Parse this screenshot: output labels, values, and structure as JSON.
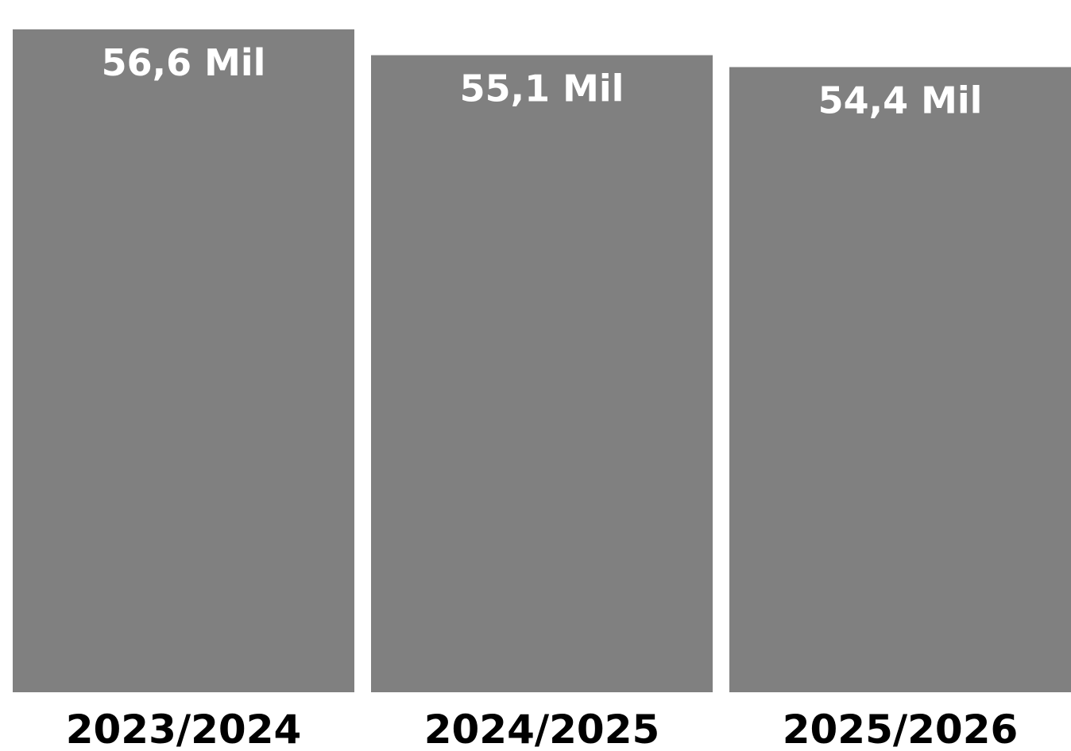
{
  "chart_data": {
    "type": "bar",
    "categories": [
      "2023/2024",
      "2024/2025",
      "2025/2026"
    ],
    "values": [
      56.6,
      55.1,
      54.4
    ],
    "data_labels": [
      "56,6 Mil",
      "55,1 Mil",
      "54,4 Mil"
    ],
    "title": "",
    "xlabel": "",
    "ylabel": "",
    "ylim": [
      0,
      56.6
    ],
    "grid": false,
    "bar_color": "#808080",
    "label_color": "#ffffff",
    "category_label_color": "#000000"
  }
}
